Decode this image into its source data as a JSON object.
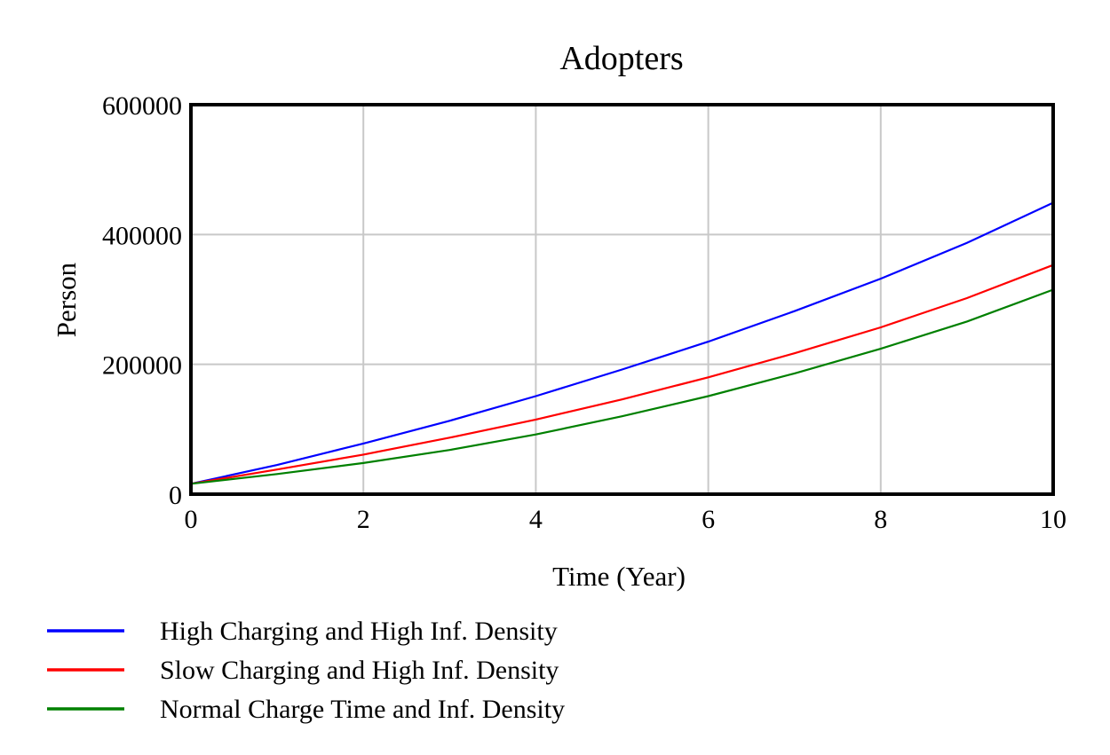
{
  "chart_data": {
    "type": "line",
    "title": "Adopters",
    "xlabel": "Time (Year)",
    "ylabel": "Person",
    "xlim": [
      0,
      10
    ],
    "ylim": [
      0,
      600000
    ],
    "x_ticks": [
      "0",
      "2",
      "4",
      "6",
      "8",
      "10"
    ],
    "y_ticks": [
      "0",
      "200000",
      "400000",
      "600000"
    ],
    "grid": true,
    "legend_position": "bottom",
    "x": [
      0,
      1,
      2,
      3,
      4,
      5,
      6,
      7,
      8,
      9,
      10
    ],
    "series": [
      {
        "name": "High Charging and High Inf. Density",
        "color": "#0000ff",
        "values": [
          16000,
          45000,
          78000,
          113000,
          151000,
          192000,
          235000,
          282000,
          332000,
          387000,
          449000
        ]
      },
      {
        "name": "Slow Charging and High Inf. Density",
        "color": "#ff0000",
        "values": [
          16000,
          38000,
          61000,
          87000,
          115000,
          146000,
          180000,
          217000,
          257000,
          302000,
          353000
        ]
      },
      {
        "name": "Normal Charge Time and Inf. Density",
        "color": "#008000",
        "values": [
          16000,
          31000,
          48000,
          68000,
          92000,
          120000,
          151000,
          186000,
          224000,
          266000,
          315000
        ]
      }
    ]
  }
}
